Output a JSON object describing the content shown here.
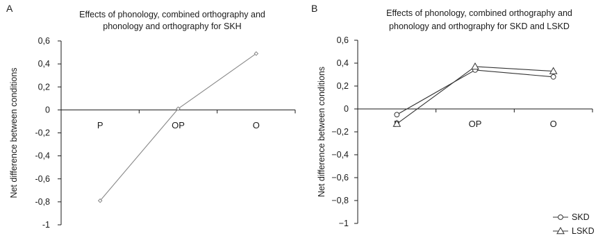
{
  "chart_data": [
    {
      "panel": "A",
      "type": "line",
      "title_lines": [
        "Effects of phonology, combined orthography and",
        "phonology and orthography for SKH"
      ],
      "ylabel": "Net difference between conditions",
      "xlabel": "",
      "ylim": [
        -1,
        0.6
      ],
      "yticks": [
        0.6,
        0.4,
        0.2,
        0,
        -0.2,
        -0.4,
        -0.6,
        -0.8,
        -1
      ],
      "ytick_labels": [
        "0,6",
        "0,4",
        "0,2",
        "0",
        "-0,2",
        "-0,4",
        "-0,6",
        "-0,8",
        "-1"
      ],
      "categories": [
        "P",
        "OP",
        "O"
      ],
      "series": [
        {
          "name": "",
          "marker": "diamond",
          "color": "#888888",
          "values": [
            -0.79,
            0.01,
            0.49
          ]
        }
      ],
      "grid": false,
      "legend": null
    },
    {
      "panel": "B",
      "type": "line",
      "title_lines": [
        "Effects of phonology, combined orthography and",
        "phonology and orthography for SKD and LSKD"
      ],
      "ylabel": "Net difference between conditions",
      "xlabel": "",
      "ylim": [
        -1,
        0.6
      ],
      "yticks": [
        0.6,
        0.4,
        0.2,
        0,
        -0.2,
        -0.4,
        -0.6,
        -0.8,
        -1
      ],
      "ytick_labels": [
        "0,6",
        "0,4",
        "0,2",
        "0",
        "−0,2",
        "−0,4",
        "−0,6",
        "−0,8",
        "−1"
      ],
      "categories": [
        "P",
        "OP",
        "O"
      ],
      "series": [
        {
          "name": "SKD",
          "marker": "circle",
          "color": "#333333",
          "values": [
            -0.05,
            0.34,
            0.28
          ]
        },
        {
          "name": "LSKD",
          "marker": "triangle",
          "color": "#333333",
          "values": [
            -0.13,
            0.37,
            0.33
          ]
        }
      ],
      "grid": false,
      "legend": "bottom-right"
    }
  ]
}
